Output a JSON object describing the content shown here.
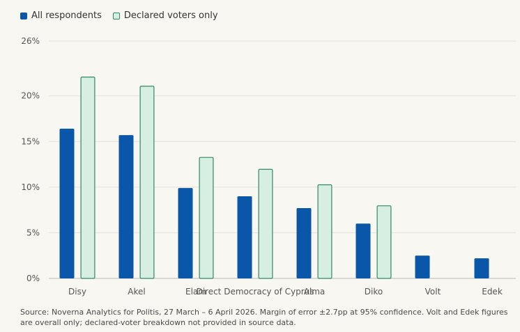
{
  "chart_data": {
    "type": "bar",
    "categories": [
      "Disy",
      "Akel",
      "Elam",
      "Direct Democracy of Cyprus",
      "Alma",
      "Diko",
      "Volt",
      "Edek"
    ],
    "series": [
      {
        "name": "All respondents",
        "values": [
          16.4,
          15.7,
          9.9,
          9.0,
          7.7,
          6.0,
          2.5,
          2.2
        ],
        "color": "#0a56a8"
      },
      {
        "name": "Declared voters only",
        "values": [
          22.1,
          21.1,
          13.3,
          12.0,
          10.3,
          8.0,
          null,
          null
        ],
        "color": "#d6efe2",
        "stroke": "#2f8a63"
      }
    ],
    "yticks": [
      0,
      5,
      10,
      15,
      20,
      26
    ],
    "ytick_labels": [
      "0%",
      "5%",
      "10%",
      "15%",
      "20%",
      "26%"
    ],
    "ylim": [
      0,
      26
    ],
    "title": "",
    "xlabel": "",
    "ylabel": "",
    "legend_position": "top-left",
    "grid": true
  },
  "legend": {
    "series1": "All respondents",
    "series2": "Declared voters only"
  },
  "footnote": "Source: Noverna Analytics for Politis, 27 March – 6 April 2026. Margin of error ±2.7pp at 95% confidence. Volt and Edek figures are overall only; declared-voter breakdown not provided in source data."
}
